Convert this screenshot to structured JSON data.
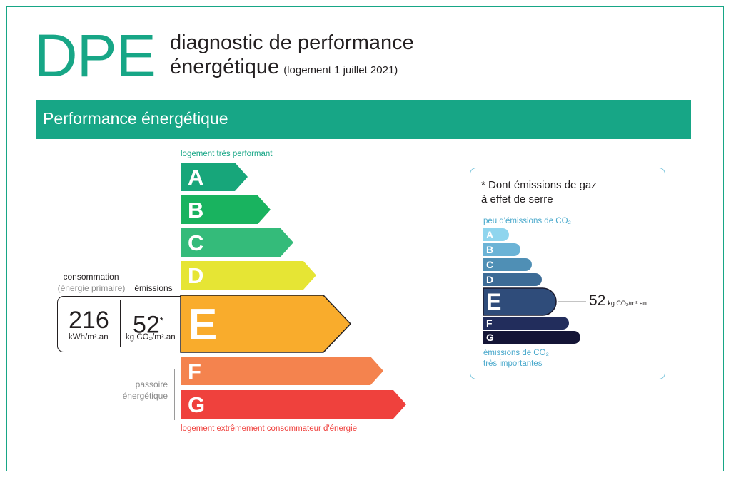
{
  "header": {
    "logo": "DPE",
    "title_line1": "diagnostic de performance",
    "title_line2": "énergétique",
    "title_note": "(logement 1 juillet 2021)"
  },
  "band": {
    "title": "Performance énergétique"
  },
  "energy_scale": {
    "top_label": "logement très performant",
    "bottom_label": "logement extrêmement consommateur d'énergie",
    "passoire_line1": "passoire",
    "passoire_line2": "énergétique",
    "active_class": "E",
    "classes": [
      {
        "letter": "A",
        "color": "#17a67a"
      },
      {
        "letter": "B",
        "color": "#19b35f"
      },
      {
        "letter": "C",
        "color": "#34bb7a"
      },
      {
        "letter": "D",
        "color": "#e6e534"
      },
      {
        "letter": "E",
        "color": "#f9ac2c"
      },
      {
        "letter": "F",
        "color": "#f4834e"
      },
      {
        "letter": "G",
        "color": "#ef413d"
      }
    ]
  },
  "values": {
    "consumption_label": "consommation",
    "consumption_sub": "(énergie primaire)",
    "emissions_label": "émissions",
    "consumption_value": "216",
    "consumption_unit": "kWh/m².an",
    "emissions_value": "52",
    "emissions_star": "*",
    "emissions_unit": "kg CO₂/m².an"
  },
  "co2": {
    "heading_line1": "* Dont émissions de gaz",
    "heading_line2": "à effet de serre",
    "top_label": "peu d'émissions de CO₂",
    "bottom_line1": "émissions de CO₂",
    "bottom_line2": "très importantes",
    "value": "52",
    "unit": "kg CO₂/m².an",
    "active_class": "E",
    "classes": [
      {
        "letter": "A",
        "color": "#8fd5ee"
      },
      {
        "letter": "B",
        "color": "#6bb3d6"
      },
      {
        "letter": "C",
        "color": "#4f8fb5"
      },
      {
        "letter": "D",
        "color": "#3c6b96"
      },
      {
        "letter": "E",
        "color": "#2f4c7a"
      },
      {
        "letter": "F",
        "color": "#222d5c"
      },
      {
        "letter": "G",
        "color": "#141536"
      }
    ]
  }
}
